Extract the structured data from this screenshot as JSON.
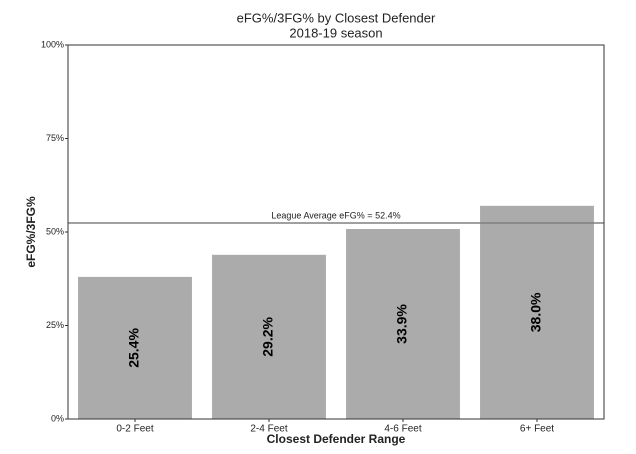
{
  "chart_data": {
    "type": "bar",
    "title": "eFG%/3FG% by Closest Defender",
    "subtitle": "2018-19 season",
    "x_label": "Closest Defender Range",
    "y_label": "eFG%/3FG%",
    "categories": [
      "0-2 Feet",
      "2-4 Feet",
      "4-6 Feet",
      "6+ Feet"
    ],
    "values": [
      38.0,
      43.9,
      50.8,
      57.0
    ],
    "color": "#ababab",
    "bar_labels": {
      "values": [
        25.4,
        29.2,
        33.9,
        38.0
      ],
      "value_labels": [
        "25.4%",
        "29.2%",
        "33.9%",
        "38.0%"
      ]
    },
    "hline": {
      "value": 52.4,
      "label": "League Average eFG% = 52.4%",
      "color": "#808080"
    },
    "ylim": [
      0,
      100
    ],
    "yticks": [
      {
        "value": 0,
        "label": "0%"
      },
      {
        "value": 25,
        "label": "25%"
      },
      {
        "value": 50,
        "label": "50%"
      },
      {
        "value": 75,
        "label": "75%"
      },
      {
        "value": 100,
        "label": "100%"
      }
    ],
    "grid": false
  }
}
